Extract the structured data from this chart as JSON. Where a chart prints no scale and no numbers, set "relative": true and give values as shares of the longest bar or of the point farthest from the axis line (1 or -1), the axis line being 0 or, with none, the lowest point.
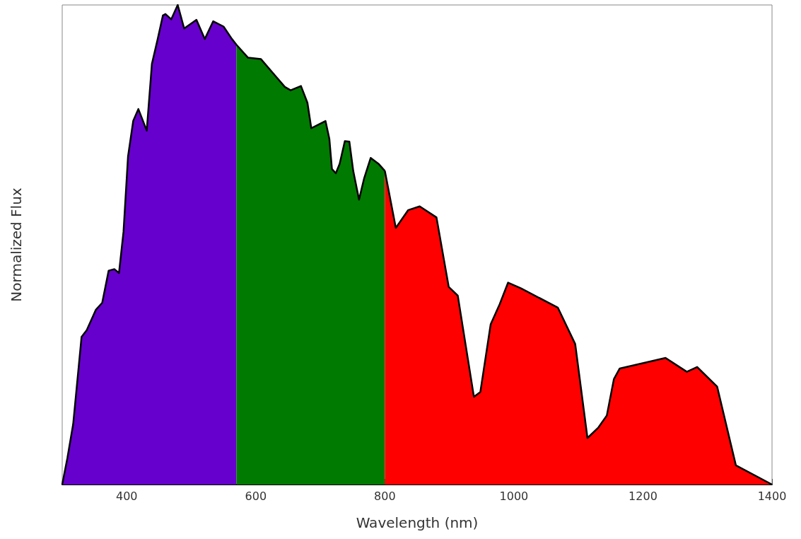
{
  "chart_data": {
    "type": "area",
    "relative": true,
    "xlabel": "Wavelength (nm)",
    "ylabel": "Normalized Flux",
    "xlim": [
      300,
      1400
    ],
    "xticks": [
      400,
      600,
      800,
      1000,
      1200,
      1400
    ],
    "grid": false,
    "series": [
      {
        "color": "#6600cc",
        "x": [
          300,
          308,
          317,
          330,
          338,
          352,
          362,
          372,
          381,
          388,
          395,
          402,
          410,
          418,
          431,
          439,
          448,
          456,
          460,
          469,
          479,
          489,
          508,
          521,
          534,
          550,
          563,
          570
        ],
        "values": [
          0,
          0.055,
          0.126,
          0.308,
          0.322,
          0.364,
          0.379,
          0.446,
          0.449,
          0.441,
          0.527,
          0.684,
          0.758,
          0.783,
          0.738,
          0.877,
          0.929,
          0.978,
          0.981,
          0.97,
          1.0,
          0.951,
          0.969,
          0.929,
          0.966,
          0.955,
          0.929,
          0.917
        ]
      },
      {
        "color": "#007a00",
        "x": [
          570,
          588,
          608,
          631,
          645,
          654,
          670,
          680,
          686,
          695,
          708,
          714,
          718,
          724,
          730,
          738,
          745,
          751,
          760,
          768,
          778,
          790,
          800
        ],
        "values": [
          0.917,
          0.89,
          0.887,
          0.851,
          0.829,
          0.822,
          0.831,
          0.796,
          0.743,
          0.749,
          0.758,
          0.721,
          0.658,
          0.649,
          0.669,
          0.716,
          0.715,
          0.654,
          0.594,
          0.639,
          0.681,
          0.669,
          0.654
        ]
      },
      {
        "color": "#ff0000",
        "x": [
          800,
          817,
          836,
          854,
          880,
          899,
          913,
          938,
          948,
          964,
          978,
          991,
          1011,
          1068,
          1095,
          1114,
          1131,
          1144,
          1155,
          1164,
          1235,
          1268,
          1284,
          1315,
          1344,
          1400
        ],
        "values": [
          0.654,
          0.535,
          0.572,
          0.58,
          0.557,
          0.412,
          0.394,
          0.183,
          0.193,
          0.334,
          0.376,
          0.421,
          0.409,
          0.369,
          0.293,
          0.097,
          0.119,
          0.144,
          0.22,
          0.242,
          0.264,
          0.235,
          0.245,
          0.204,
          0.04,
          0
        ]
      }
    ]
  }
}
